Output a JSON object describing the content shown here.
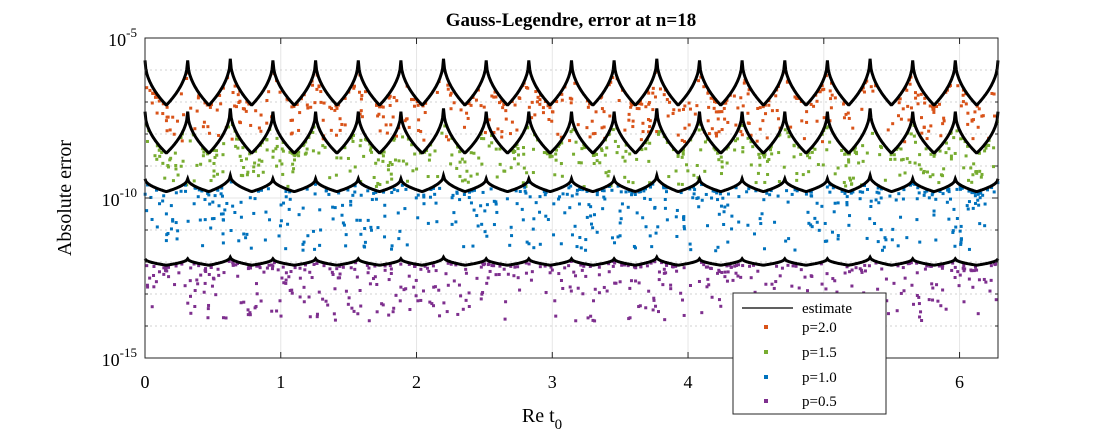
{
  "chart_data": {
    "type": "scatter",
    "title": "Gauss-Legendre, error at n=18",
    "xlabel": "Re t",
    "xlabel_subscript": "0",
    "ylabel": "Absolute error",
    "xlim": [
      0,
      6.2832
    ],
    "ylim_log10": [
      -15,
      -5
    ],
    "yscale": "log",
    "grid": true,
    "x_ticks": [
      0,
      1,
      2,
      3,
      4,
      5,
      6
    ],
    "x_tick_labels": [
      "0",
      "1",
      "2",
      "3",
      "4",
      "5",
      "6"
    ],
    "y_ticks_log10": [
      -5,
      -10,
      -15
    ],
    "y_tick_labels": [
      {
        "base": "10",
        "exp": "-5"
      },
      {
        "base": "10",
        "exp": "-10"
      },
      {
        "base": "10",
        "exp": "-15"
      }
    ],
    "legend_position": "bottom-right",
    "estimate": {
      "name": "estimate",
      "color": "#000000",
      "bumps": 20,
      "curves": [
        {
          "p": 2.0,
          "peak_log10": -5.7,
          "trough_log10": -7.1,
          "big_peak_log10": -5.65
        },
        {
          "p": 1.5,
          "peak_log10": -7.3,
          "trough_log10": -8.6,
          "big_peak_log10": -7.2
        },
        {
          "p": 1.0,
          "peak_log10": -9.4,
          "trough_log10": -9.8,
          "big_peak_log10": -9.3
        },
        {
          "p": 0.5,
          "peak_log10": -11.9,
          "trough_log10": -12.1,
          "big_peak_log10": -11.85
        }
      ]
    },
    "series": [
      {
        "name": "p=2.0",
        "color": "#D95319",
        "points_per_series": 520,
        "upper_log10": -5.7,
        "lower_log10": -8.2
      },
      {
        "name": "p=1.5",
        "color": "#77AC30",
        "points_per_series": 520,
        "upper_log10": -7.3,
        "lower_log10": -9.6
      },
      {
        "name": "p=1.0",
        "color": "#0072BD",
        "points_per_series": 520,
        "upper_log10": -9.4,
        "lower_log10": -11.6
      },
      {
        "name": "p=0.5",
        "color": "#7E2F8E",
        "points_per_series": 520,
        "upper_log10": -11.9,
        "lower_log10": -13.8
      }
    ]
  }
}
